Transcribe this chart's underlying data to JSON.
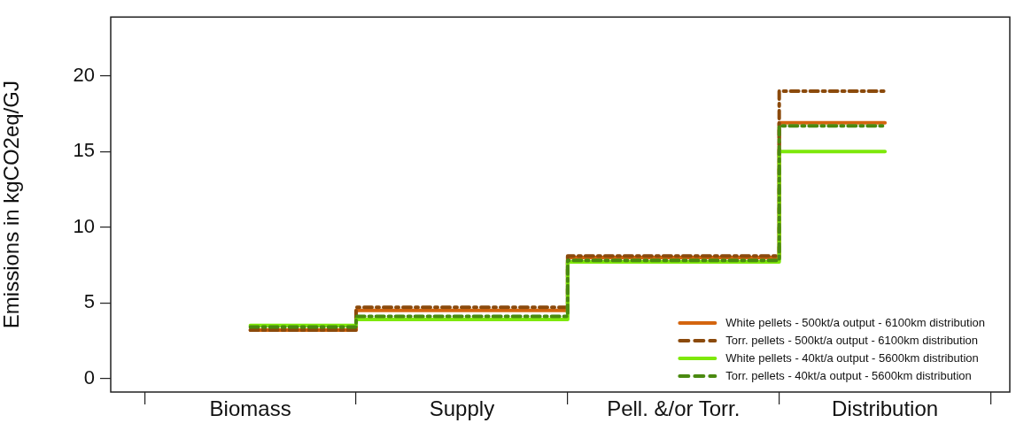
{
  "chart_data": {
    "type": "step",
    "ylabel": "Emissions in kgCO2eq/GJ",
    "categories": [
      "Biomass",
      "Supply",
      "Pell. &/or Torr.",
      "Distribution"
    ],
    "series": [
      {
        "name": "White pellets - 500kt/a output - 6100km distribution",
        "color": "#d4650f",
        "line_style": "solid",
        "values": [
          3.2,
          4.5,
          8.0,
          16.9
        ]
      },
      {
        "name": "Torr. pellets - 500kt/a output - 6100km distribution",
        "color": "#8b4a0c",
        "line_style": "dashed",
        "values": [
          3.2,
          4.7,
          8.1,
          19.0
        ]
      },
      {
        "name": "White pellets - 40kt/a output - 5600km distribution",
        "color": "#7ee80a",
        "line_style": "solid",
        "values": [
          3.5,
          3.9,
          7.7,
          15.0
        ]
      },
      {
        "name": "Torr. pellets - 40kt/a output - 5600km distribution",
        "color": "#4a8a10",
        "line_style": "dashed",
        "values": [
          3.4,
          4.1,
          7.8,
          16.7
        ]
      }
    ],
    "ylim": [
      -0.9,
      23.9
    ],
    "yticks": [
      0,
      5,
      10,
      15,
      20
    ],
    "grid": false,
    "legend": "bottom right"
  }
}
